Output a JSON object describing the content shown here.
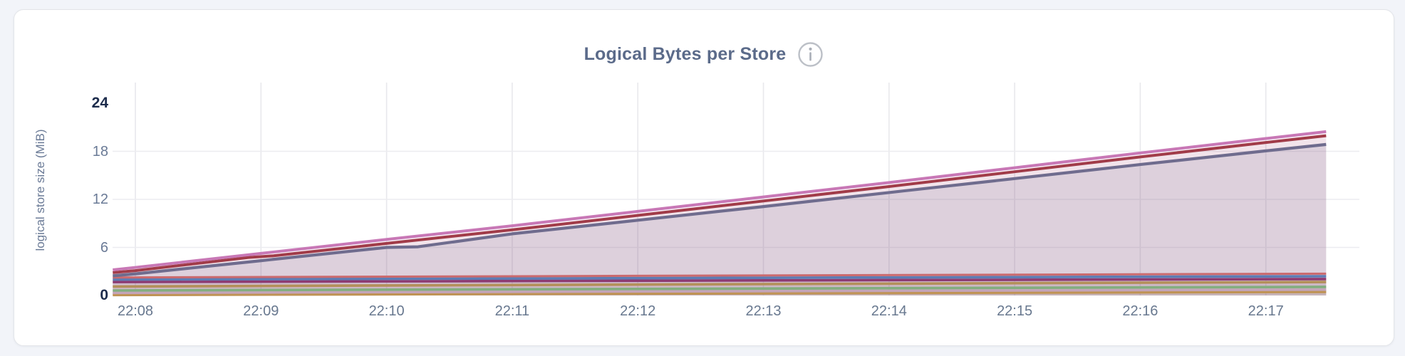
{
  "page": {
    "background_color": "#f2f4f9",
    "card_background": "#ffffff",
    "card_border_color": "#e3e5e9"
  },
  "header": {
    "title": "Logical Bytes per Store",
    "info_icon": "info-circle-icon"
  },
  "chart_data": {
    "type": "area",
    "title": "Logical Bytes per Store",
    "xlabel": "",
    "ylabel": "logical store size (MiB)",
    "ylim": [
      0,
      24
    ],
    "grid": true,
    "legend": "none",
    "x_unit": "time (HH:MM)",
    "x_range_minutes": [
      -0.18,
      9.48
    ],
    "y_ticks": [
      {
        "label": "0",
        "value": 0,
        "emphasis": true
      },
      {
        "label": "6",
        "value": 6,
        "emphasis": false
      },
      {
        "label": "12",
        "value": 12,
        "emphasis": false
      },
      {
        "label": "18",
        "value": 18,
        "emphasis": false
      },
      {
        "label": "24",
        "value": 24,
        "emphasis": true
      }
    ],
    "x_ticks": [
      {
        "label": "22:08",
        "minute": 0
      },
      {
        "label": "22:09",
        "minute": 1
      },
      {
        "label": "22:10",
        "minute": 2
      },
      {
        "label": "22:11",
        "minute": 3
      },
      {
        "label": "22:12",
        "minute": 4
      },
      {
        "label": "22:13",
        "minute": 5
      },
      {
        "label": "22:14",
        "minute": 6
      },
      {
        "label": "22:15",
        "minute": 7
      },
      {
        "label": "22:16",
        "minute": 8
      },
      {
        "label": "22:17",
        "minute": 9
      }
    ],
    "series": [
      {
        "id": "s1",
        "color": "#c878b6",
        "width": 4,
        "fill_opacity": 0.1,
        "points": [
          [
            -0.18,
            3.2
          ],
          [
            0,
            3.5
          ],
          [
            1,
            5.25
          ],
          [
            2,
            7.0
          ],
          [
            3,
            8.7
          ],
          [
            4,
            10.5
          ],
          [
            5,
            12.3
          ],
          [
            6,
            14.1
          ],
          [
            7,
            15.95
          ],
          [
            8,
            17.8
          ],
          [
            9,
            19.6
          ],
          [
            9.48,
            20.45
          ]
        ]
      },
      {
        "id": "s2",
        "color": "#a13c49",
        "width": 4,
        "fill_opacity": 0.07,
        "points": [
          [
            -0.18,
            2.85
          ],
          [
            0,
            3.1
          ],
          [
            0.9,
            4.75
          ],
          [
            1.1,
            4.95
          ],
          [
            2,
            6.5
          ],
          [
            3,
            8.2
          ],
          [
            4,
            10.0
          ],
          [
            5,
            11.8
          ],
          [
            6,
            13.6
          ],
          [
            7,
            15.45
          ],
          [
            8,
            17.3
          ],
          [
            9,
            19.1
          ],
          [
            9.48,
            19.95
          ]
        ]
      },
      {
        "id": "s3",
        "color": "#6f6c8e",
        "width": 4.2,
        "fill_opacity": 0.16,
        "points": [
          [
            -0.18,
            2.45
          ],
          [
            0,
            2.7
          ],
          [
            1,
            4.35
          ],
          [
            2,
            6.0
          ],
          [
            2.25,
            6.08
          ],
          [
            3,
            7.7
          ],
          [
            4,
            9.4
          ],
          [
            5,
            11.1
          ],
          [
            6,
            12.85
          ],
          [
            7,
            14.6
          ],
          [
            8,
            16.35
          ],
          [
            9,
            18.05
          ],
          [
            9.48,
            18.85
          ]
        ]
      },
      {
        "id": "s4",
        "color": "#cb6a6e",
        "width": 3,
        "fill_opacity": 0.06,
        "points": [
          [
            -0.18,
            2.25
          ],
          [
            9.48,
            2.72
          ]
        ]
      },
      {
        "id": "s5",
        "color": "#5d7cb4",
        "width": 3.6,
        "fill_opacity": 0.06,
        "points": [
          [
            -0.18,
            1.98
          ],
          [
            9.48,
            2.4
          ]
        ]
      },
      {
        "id": "s6",
        "color": "#8d3b72",
        "width": 3.6,
        "fill_opacity": 0.06,
        "points": [
          [
            -0.18,
            1.68
          ],
          [
            9.48,
            2.05
          ]
        ]
      },
      {
        "id": "s7",
        "color": "#b4905a",
        "width": 3.6,
        "fill_opacity": 0.06,
        "points": [
          [
            -0.18,
            1.12
          ],
          [
            9.48,
            1.68
          ]
        ]
      },
      {
        "id": "s8",
        "color": "#83ae80",
        "width": 3.6,
        "fill_opacity": 0.06,
        "points": [
          [
            -0.18,
            0.62
          ],
          [
            9.48,
            1.08
          ]
        ]
      },
      {
        "id": "s9",
        "color": "#c4a4b8",
        "width": 3.4,
        "fill_opacity": 0.06,
        "points": [
          [
            -0.18,
            0.32
          ],
          [
            9.48,
            0.72
          ]
        ]
      },
      {
        "id": "s10",
        "color": "#bf9354",
        "width": 3.6,
        "fill_opacity": 0.06,
        "points": [
          [
            -0.18,
            0.06
          ],
          [
            9.48,
            0.45
          ]
        ]
      }
    ]
  },
  "style": {
    "gridline_color_v": "#e8e8ec",
    "gridline_color_h": "#ececf0",
    "tick_color": "#68788f",
    "tick_emphasis_color": "#1d2c4c",
    "title_color": "#5b6b8a",
    "info_icon_color": "#b9bdc5"
  }
}
